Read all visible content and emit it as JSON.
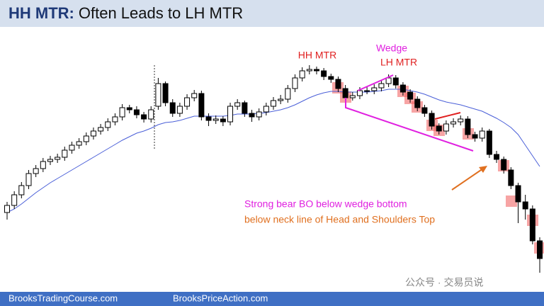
{
  "chart_data": {
    "type": "candlestick",
    "title_lead": "HH MTR:",
    "title_rest": "Often Leads to LH MTR",
    "annotations": {
      "hh_mtr": "HH MTR",
      "wedge": "Wedge",
      "lh_mtr": "LH MTR",
      "breakout": "Strong bear BO below wedge bottom",
      "neckline": "below neck line of Head and Shoulders Top"
    },
    "footer_left": "BrooksTradingCourse.com",
    "footer_right": "BrooksPriceAction.com",
    "watermark": "公众号 · 交易员说",
    "ylim": [
      0,
      370
    ],
    "bull_color": "#ffffff",
    "bear_color": "#000000",
    "ma_color": "#4a5fd8",
    "candles": [
      [
        110,
        125,
        100,
        120
      ],
      [
        120,
        140,
        115,
        135
      ],
      [
        135,
        153,
        130,
        148
      ],
      [
        148,
        170,
        143,
        165
      ],
      [
        165,
        177,
        160,
        172
      ],
      [
        172,
        187,
        167,
        182
      ],
      [
        182,
        190,
        177,
        185
      ],
      [
        185,
        193,
        180,
        188
      ],
      [
        188,
        203,
        183,
        198
      ],
      [
        198,
        210,
        193,
        205
      ],
      [
        205,
        215,
        200,
        210
      ],
      [
        210,
        223,
        205,
        218
      ],
      [
        218,
        230,
        213,
        225
      ],
      [
        225,
        235,
        220,
        230
      ],
      [
        230,
        243,
        225,
        238
      ],
      [
        238,
        250,
        233,
        245
      ],
      [
        245,
        263,
        240,
        258
      ],
      [
        258,
        262,
        250,
        255
      ],
      [
        255,
        260,
        243,
        248
      ],
      [
        248,
        252,
        237,
        242
      ],
      [
        242,
        260,
        237,
        255
      ],
      [
        260,
        300,
        255,
        292
      ],
      [
        292,
        295,
        260,
        265
      ],
      [
        265,
        270,
        245,
        250
      ],
      [
        250,
        265,
        245,
        260
      ],
      [
        260,
        277,
        255,
        272
      ],
      [
        272,
        283,
        267,
        278
      ],
      [
        278,
        282,
        240,
        245
      ],
      [
        245,
        250,
        232,
        240
      ],
      [
        240,
        247,
        235,
        242
      ],
      [
        242,
        246,
        232,
        238
      ],
      [
        238,
        265,
        233,
        260
      ],
      [
        260,
        270,
        255,
        265
      ],
      [
        265,
        268,
        245,
        250
      ],
      [
        250,
        255,
        238,
        245
      ],
      [
        245,
        257,
        240,
        252
      ],
      [
        252,
        265,
        247,
        260
      ],
      [
        260,
        273,
        255,
        268
      ],
      [
        268,
        276,
        263,
        270
      ],
      [
        270,
        290,
        265,
        285
      ],
      [
        285,
        305,
        280,
        300
      ],
      [
        300,
        315,
        295,
        310
      ],
      [
        310,
        318,
        305,
        312
      ],
      [
        312,
        316,
        305,
        310
      ],
      [
        310,
        314,
        297,
        302
      ],
      [
        302,
        306,
        293,
        298
      ],
      [
        298,
        302,
        280,
        285
      ],
      [
        285,
        290,
        267,
        272
      ],
      [
        272,
        280,
        268,
        275
      ],
      [
        275,
        287,
        270,
        282
      ],
      [
        282,
        288,
        277,
        282
      ],
      [
        282,
        291,
        277,
        286
      ],
      [
        286,
        297,
        281,
        292
      ],
      [
        292,
        305,
        287,
        300
      ],
      [
        300,
        304,
        285,
        290
      ],
      [
        290,
        294,
        275,
        280
      ],
      [
        280,
        284,
        265,
        270
      ],
      [
        270,
        274,
        253,
        258
      ],
      [
        258,
        262,
        245,
        250
      ],
      [
        250,
        254,
        227,
        232
      ],
      [
        232,
        236,
        220,
        225
      ],
      [
        225,
        240,
        220,
        235
      ],
      [
        235,
        243,
        230,
        238
      ],
      [
        238,
        247,
        233,
        242
      ],
      [
        242,
        246,
        215,
        220
      ],
      [
        220,
        224,
        210,
        215
      ],
      [
        215,
        230,
        210,
        225
      ],
      [
        225,
        228,
        187,
        192
      ],
      [
        192,
        197,
        180,
        185
      ],
      [
        185,
        189,
        165,
        170
      ],
      [
        170,
        174,
        143,
        148
      ],
      [
        148,
        152,
        95,
        125
      ],
      [
        125,
        135,
        100,
        115
      ],
      [
        115,
        120,
        65,
        70
      ],
      [
        70,
        75,
        25,
        45
      ]
    ],
    "ma": [
      110,
      115,
      122,
      130,
      138,
      145,
      152,
      158,
      164,
      170,
      176,
      182,
      188,
      194,
      200,
      206,
      212,
      217,
      222,
      225,
      229,
      234,
      237,
      238,
      240,
      243,
      246,
      246,
      246,
      246,
      246,
      247,
      249,
      249,
      249,
      250,
      251,
      253,
      255,
      258,
      262,
      267,
      272,
      276,
      279,
      281,
      281,
      280,
      280,
      280,
      280,
      281,
      282,
      284,
      284,
      284,
      282,
      280,
      277,
      273,
      269,
      266,
      264,
      262,
      259,
      256,
      253,
      248,
      243,
      237,
      230,
      220,
      205,
      190,
      175
    ]
  }
}
